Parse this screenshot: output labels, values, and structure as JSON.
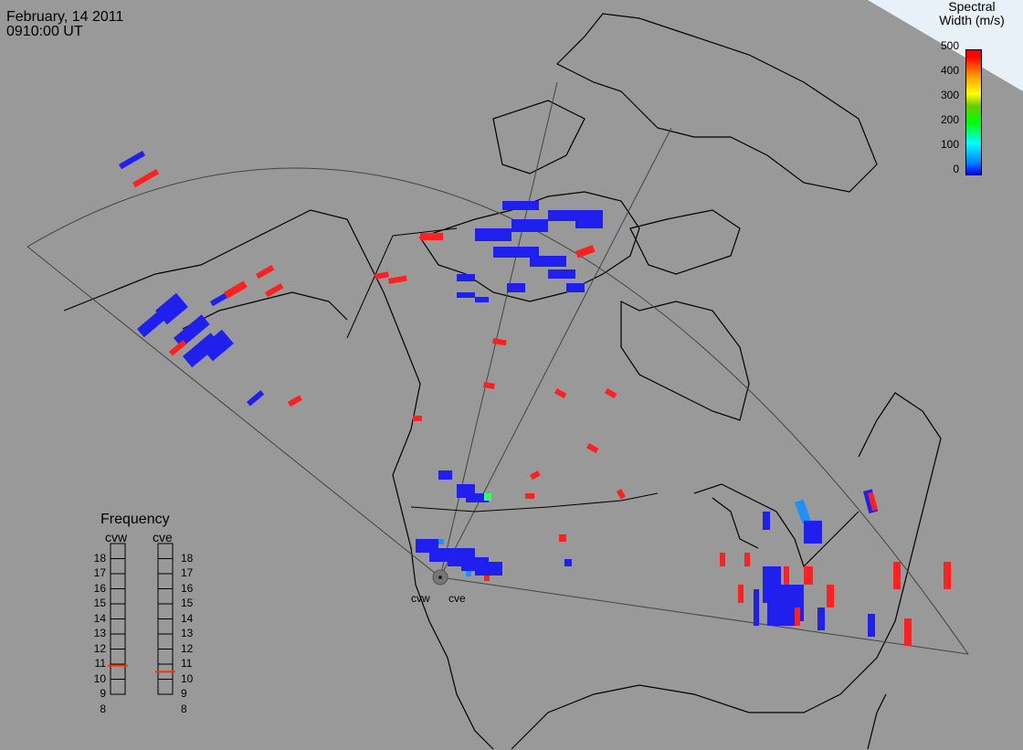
{
  "header": {
    "date": "February, 14 2011",
    "time": "0910:00 UT"
  },
  "colorbar": {
    "title_line1": "Spectral",
    "title_line2": "Width (m/s)",
    "ticks": [
      "500",
      "400",
      "300",
      "200",
      "100",
      "0"
    ],
    "colors": [
      "#0000ff",
      "#00ffff",
      "#00ff00",
      "#ffff00",
      "#ff0000"
    ]
  },
  "frequency": {
    "title": "Frequency",
    "radar_a": "cvw",
    "radar_b": "cve",
    "ticks": [
      "18",
      "17",
      "16",
      "15",
      "14",
      "13",
      "12",
      "11",
      "10",
      "9",
      "8"
    ],
    "radar_a_mhz": 10.9,
    "radar_b_mhz": 10.5
  },
  "radars": {
    "west": "cvw",
    "east": "cve"
  },
  "palette": {
    "background": "#999999",
    "low": "#2020ee",
    "high": "#ff2020",
    "mid": "#1e90ff"
  }
}
